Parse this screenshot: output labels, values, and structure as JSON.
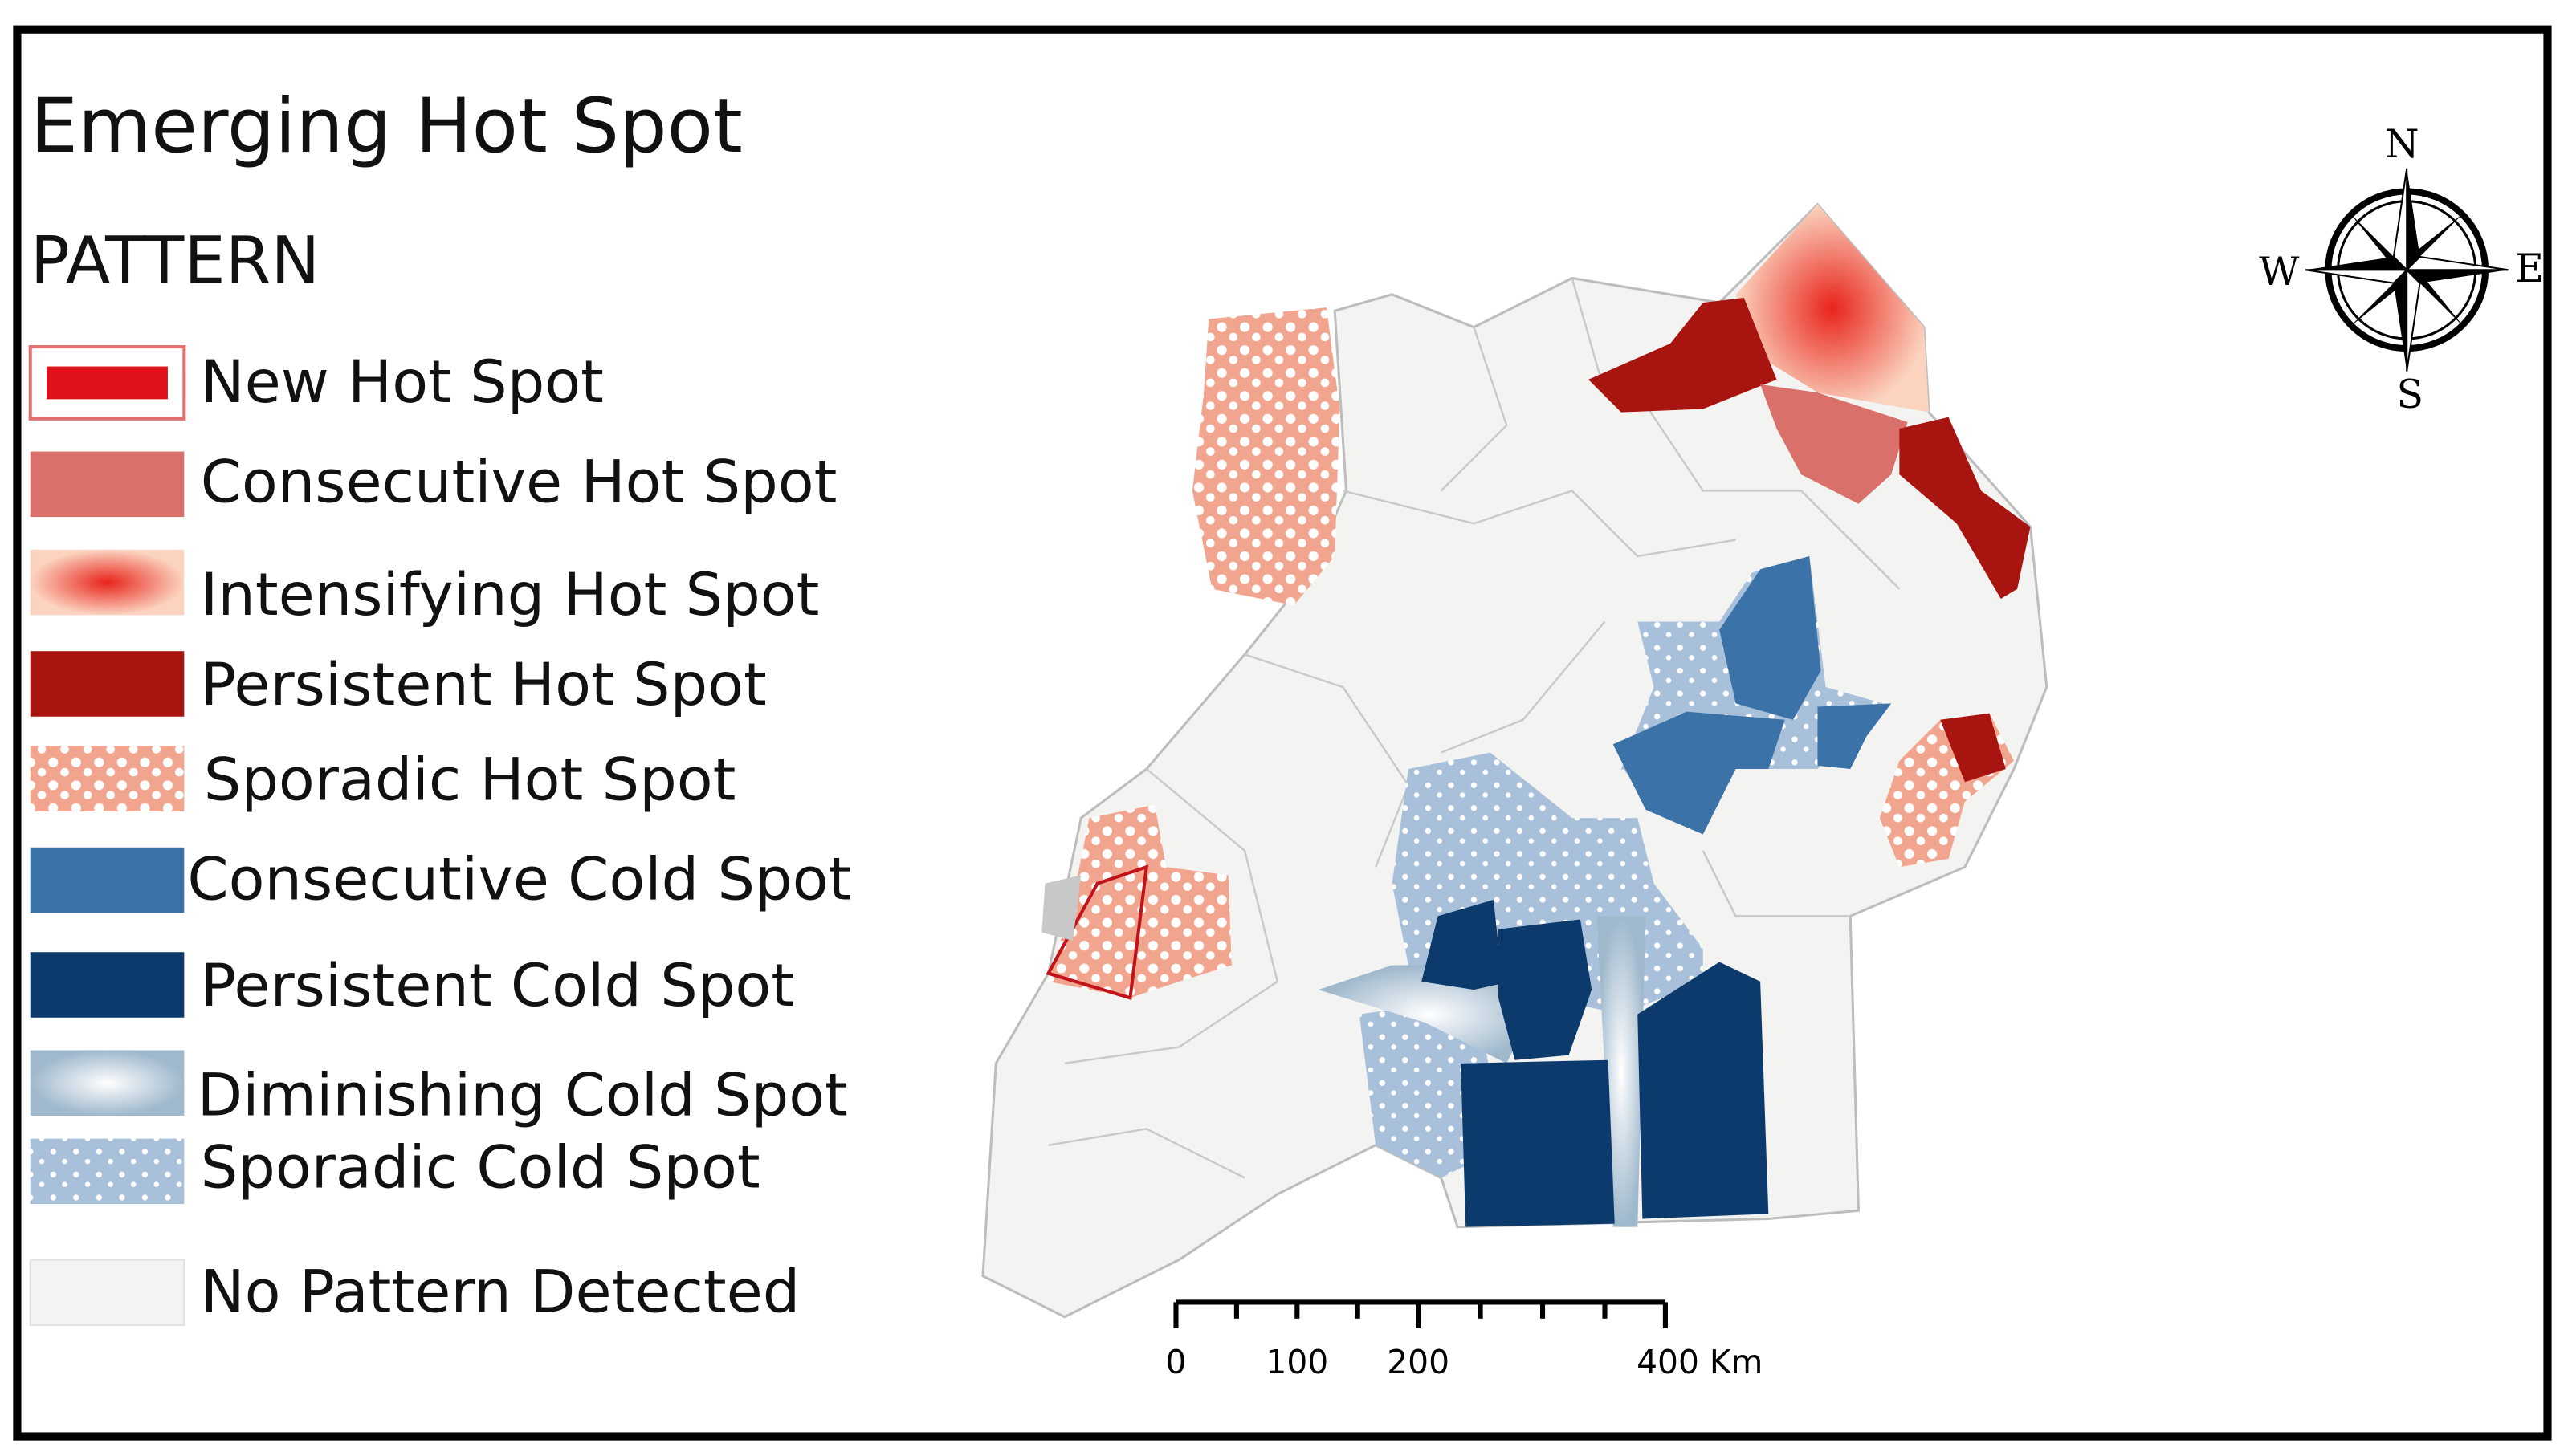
{
  "header": {
    "title": "Emerging Hot Spot",
    "legend_title": "PATTERN"
  },
  "legend": {
    "items": [
      {
        "label": "New Hot Spot"
      },
      {
        "label": "Consecutive Hot Spot"
      },
      {
        "label": "Intensifying Hot Spot"
      },
      {
        "label": "Persistent Hot Spot"
      },
      {
        "label": "Sporadic Hot Spot"
      },
      {
        "label": "Consecutive Cold Spot"
      },
      {
        "label": "Persistent Cold Spot"
      },
      {
        "label": "Diminishing Cold Spot"
      },
      {
        "label": "Sporadic Cold Spot"
      },
      {
        "label": "No Pattern Detected"
      }
    ]
  },
  "compass": {
    "north": "N",
    "east": "E",
    "south": "S",
    "west": "W"
  },
  "scale_bar": {
    "labels": [
      "0",
      "100",
      "200",
      "400 Km"
    ]
  }
}
